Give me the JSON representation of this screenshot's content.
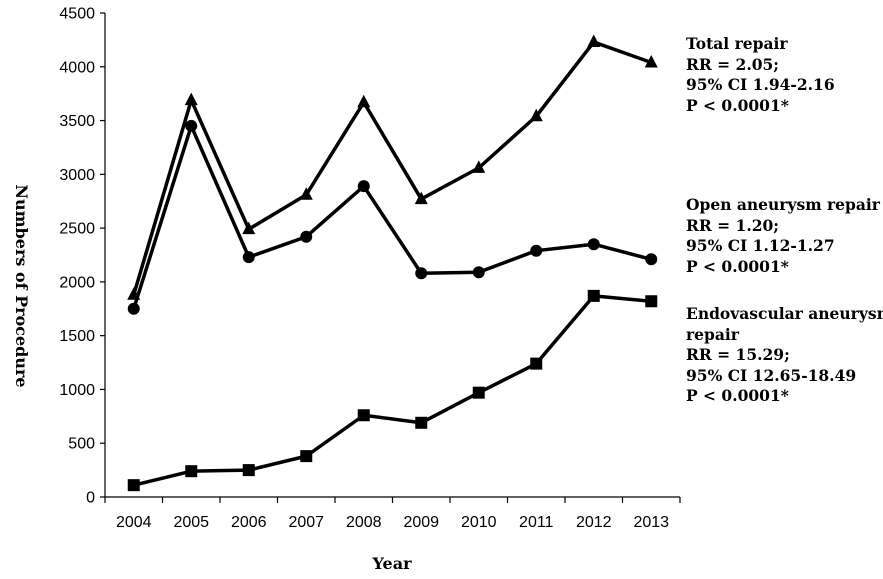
{
  "chart_data": {
    "type": "line",
    "xlabel": "Year",
    "ylabel": "Numbers of Procedure",
    "ylim": [
      0,
      4500
    ],
    "ytick_step": 500,
    "yticks": [
      "0",
      "500",
      "1000",
      "1500",
      "2000",
      "2500",
      "3000",
      "3500",
      "4000",
      "4500"
    ],
    "categories": [
      "2004",
      "2005",
      "2006",
      "2007",
      "2008",
      "2009",
      "2010",
      "2011",
      "2012",
      "2013"
    ],
    "grid": false,
    "legend": "none",
    "series": [
      {
        "marker": "triangle",
        "color": "#000000",
        "values": [
          1880,
          3690,
          2490,
          2810,
          3670,
          2770,
          3060,
          3540,
          4230,
          4040
        ]
      },
      {
        "marker": "circle",
        "color": "#000000",
        "values": [
          1750,
          3450,
          2230,
          2420,
          2890,
          2080,
          2090,
          2290,
          2350,
          2210
        ]
      },
      {
        "marker": "square",
        "color": "#000000",
        "values": [
          110,
          240,
          250,
          380,
          760,
          690,
          970,
          1240,
          1870,
          1820
        ]
      }
    ],
    "annotations": [
      {
        "lines": [
          "Total repair",
          "RR = 2.05;",
          "95% CI 1.94-2.16",
          "P < 0.0001*"
        ]
      },
      {
        "lines": [
          "Open aneurysm repair",
          "RR = 1.20;",
          "95% CI 1.12-1.27",
          "P < 0.0001*"
        ]
      },
      {
        "lines": [
          "Endovascular aneurysm",
          "repair",
          "RR = 15.29;",
          "95% CI 12.65-18.49",
          "P < 0.0001*"
        ]
      }
    ]
  }
}
